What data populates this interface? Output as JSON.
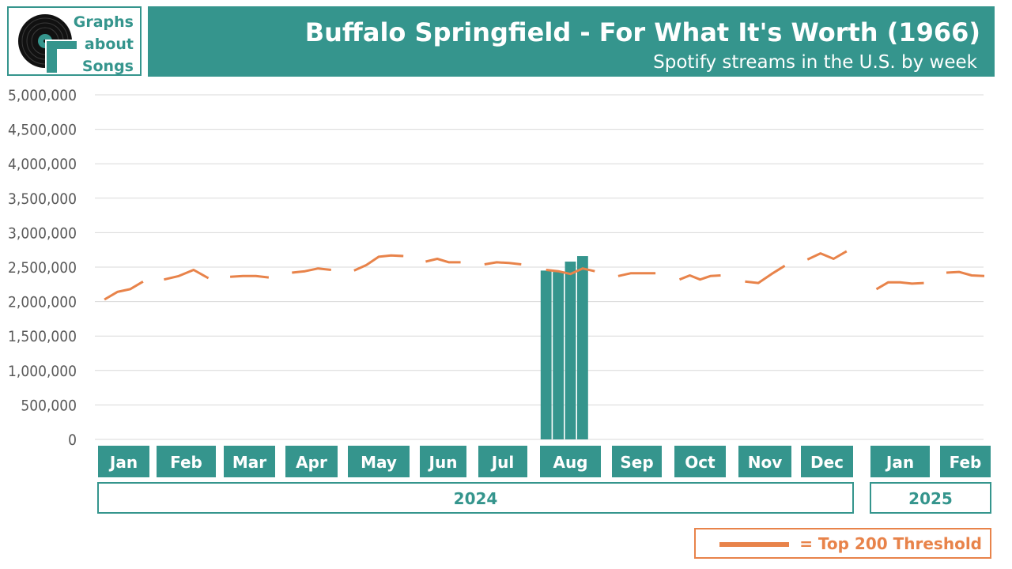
{
  "logo": {
    "lines": [
      "Graphs",
      "about",
      "Songs"
    ]
  },
  "header": {
    "title": "Buffalo Springfield - For What It's Worth (1966)",
    "subtitle": "Spotify streams in the U.S. by week"
  },
  "legend": {
    "label": "= Top 200 Threshold"
  },
  "colors": {
    "teal": "#35958d",
    "orange": "#e8834a",
    "grid": "#d9d9d9",
    "axis_text": "#595959"
  },
  "chart_data": {
    "type": "bar",
    "title": "Buffalo Springfield - For What It's Worth (1966)",
    "subtitle": "Spotify streams in the U.S. by week",
    "ylim": [
      0,
      5000000
    ],
    "yticks": [
      0,
      500000,
      1000000,
      1500000,
      2000000,
      2500000,
      3000000,
      3500000,
      4000000,
      4500000,
      5000000
    ],
    "ytick_labels": [
      "0",
      "500,000",
      "1,000,000",
      "1,500,000",
      "2,000,000",
      "2,500,000",
      "3,000,000",
      "3,500,000",
      "4,000,000",
      "4,500,000",
      "5,000,000"
    ],
    "grid": true,
    "months": [
      {
        "label": "Jan",
        "year": "2024",
        "weeks": 4
      },
      {
        "label": "Feb",
        "year": "2024",
        "weeks": 4
      },
      {
        "label": "Mar",
        "year": "2024",
        "weeks": 4
      },
      {
        "label": "Apr",
        "year": "2024",
        "weeks": 4
      },
      {
        "label": "May",
        "year": "2024",
        "weeks": 5
      },
      {
        "label": "Jun",
        "year": "2024",
        "weeks": 4
      },
      {
        "label": "Jul",
        "year": "2024",
        "weeks": 4
      },
      {
        "label": "Aug",
        "year": "2024",
        "weeks": 5
      },
      {
        "label": "Sep",
        "year": "2024",
        "weeks": 4
      },
      {
        "label": "Oct",
        "year": "2024",
        "weeks": 5
      },
      {
        "label": "Nov",
        "year": "2024",
        "weeks": 4
      },
      {
        "label": "Dec",
        "year": "2024",
        "weeks": 4
      },
      {
        "label": "Jan",
        "year": "2025",
        "weeks": 5
      },
      {
        "label": "Feb",
        "year": "2025",
        "weeks": 4
      }
    ],
    "years": [
      {
        "label": "2024",
        "first_month": 0,
        "last_month": 11
      },
      {
        "label": "2025",
        "first_month": 12,
        "last_month": 13
      }
    ],
    "series": [
      {
        "type": "bar",
        "values": [
          null,
          null,
          null,
          null,
          null,
          null,
          null,
          null,
          null,
          null,
          null,
          null,
          null,
          null,
          null,
          null,
          null,
          null,
          null,
          null,
          null,
          null,
          null,
          null,
          null,
          null,
          null,
          null,
          null,
          2450000,
          2430000,
          2580000,
          2660000,
          null,
          null,
          null,
          null,
          null,
          null,
          null,
          null,
          null,
          null,
          null,
          null,
          null,
          null,
          null,
          null,
          null,
          null,
          null,
          null,
          null,
          null,
          null,
          null,
          null,
          null,
          null
        ]
      },
      {
        "type": "line",
        "name": "Top 200 Threshold",
        "values": [
          2030000,
          2140000,
          2180000,
          2290000,
          2320000,
          2370000,
          2460000,
          2340000,
          2360000,
          2370000,
          2370000,
          2350000,
          2420000,
          2440000,
          2480000,
          2460000,
          2450000,
          2530000,
          2650000,
          2670000,
          2660000,
          2580000,
          2620000,
          2570000,
          2570000,
          2540000,
          2570000,
          2560000,
          2540000,
          2460000,
          2440000,
          2400000,
          2480000,
          2440000,
          2370000,
          2410000,
          2410000,
          2410000,
          2320000,
          2380000,
          2320000,
          2370000,
          2380000,
          2290000,
          2270000,
          2400000,
          2520000,
          2610000,
          2700000,
          2620000,
          2730000,
          2180000,
          2280000,
          2280000,
          2260000,
          2270000,
          2420000,
          2430000,
          2380000,
          2370000
        ]
      }
    ]
  }
}
